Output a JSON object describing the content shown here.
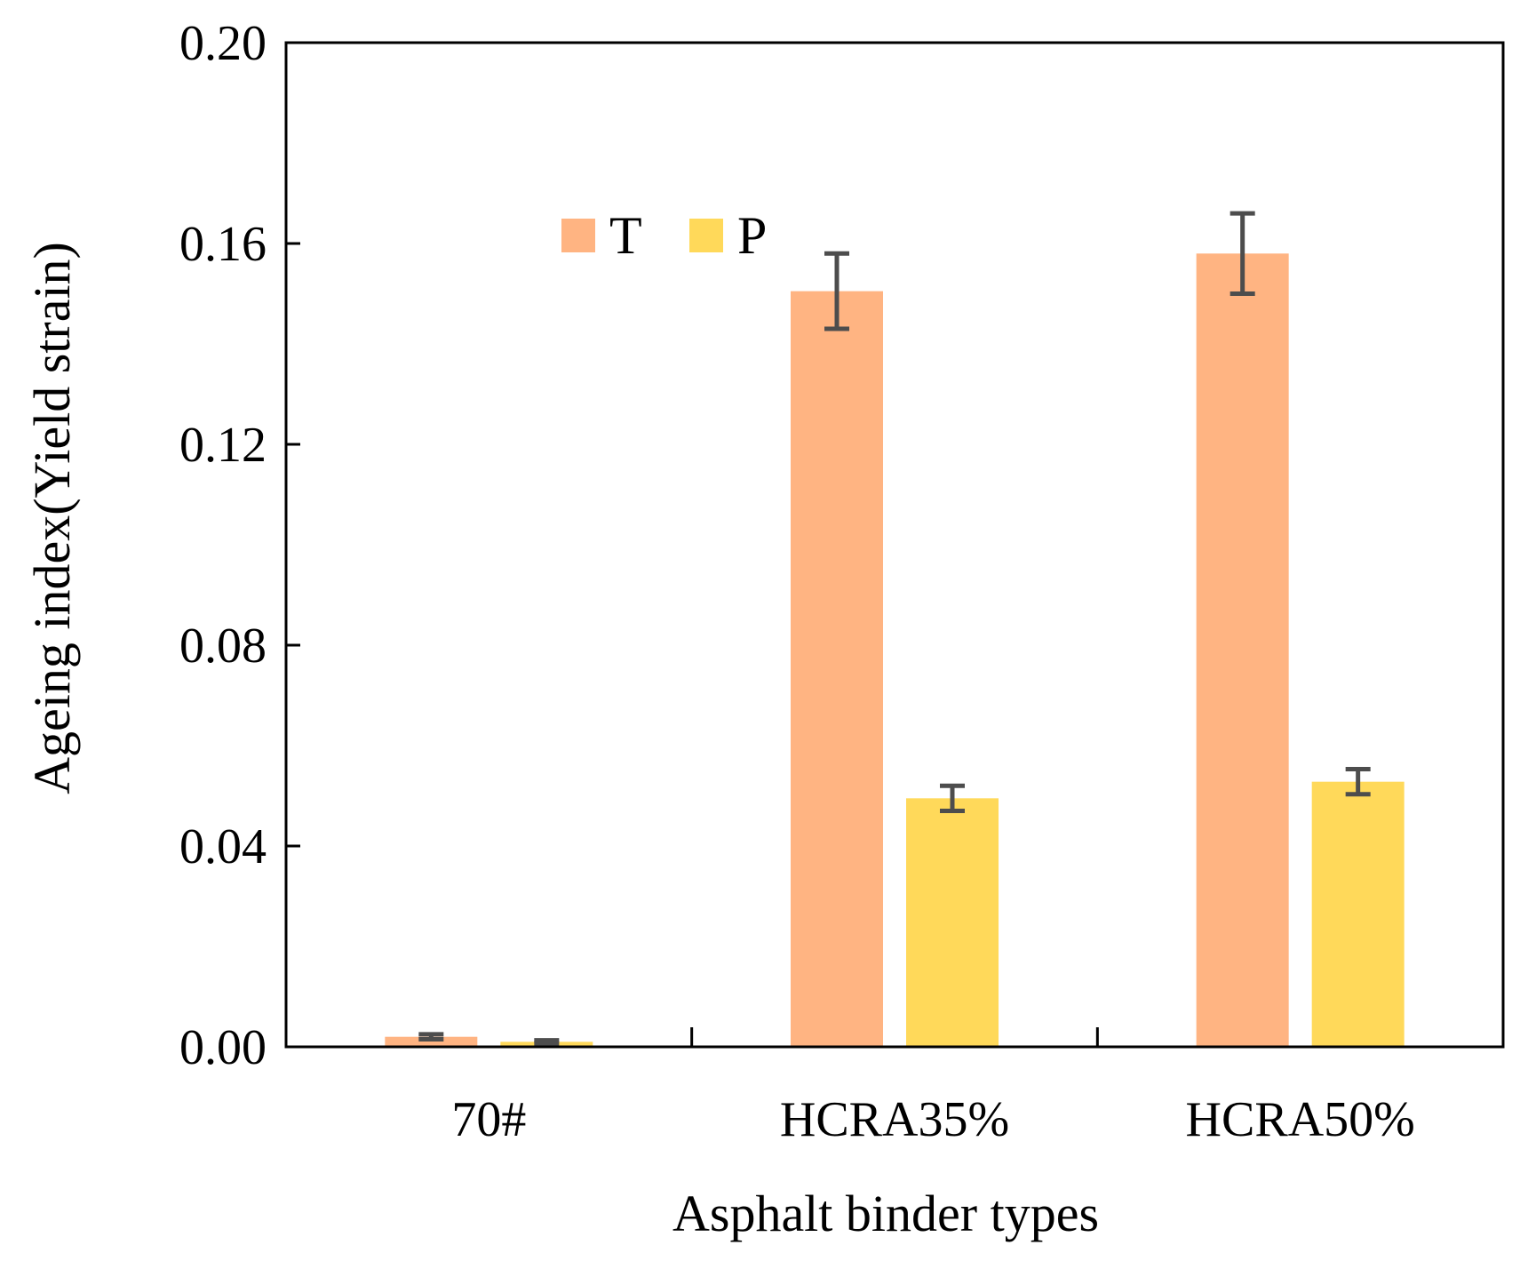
{
  "chart_data": {
    "type": "bar",
    "title": "",
    "xlabel": "Asphalt binder types",
    "ylabel": "Ageing index(Yield strain)",
    "categories": [
      "70#",
      "HCRA35%",
      "HCRA50%"
    ],
    "ylim": [
      0,
      0.2
    ],
    "yticks": [
      0.0,
      0.04,
      0.08,
      0.12,
      0.16,
      0.2
    ],
    "ytick_labels": [
      "0.00",
      "0.04",
      "0.08",
      "0.12",
      "0.16",
      "0.20"
    ],
    "grid": false,
    "legend_position": "top-left",
    "series": [
      {
        "name": "T",
        "color": "#FFB482",
        "values": [
          0.002,
          0.1505,
          0.158
        ],
        "errors": [
          0.0005,
          0.0075,
          0.008
        ]
      },
      {
        "name": "P",
        "color": "#FFD95A",
        "values": [
          0.001,
          0.0495,
          0.0528
        ],
        "errors": [
          0.0003,
          0.0025,
          0.0025
        ]
      }
    ],
    "error_bar_color": "#4d4d4d"
  }
}
